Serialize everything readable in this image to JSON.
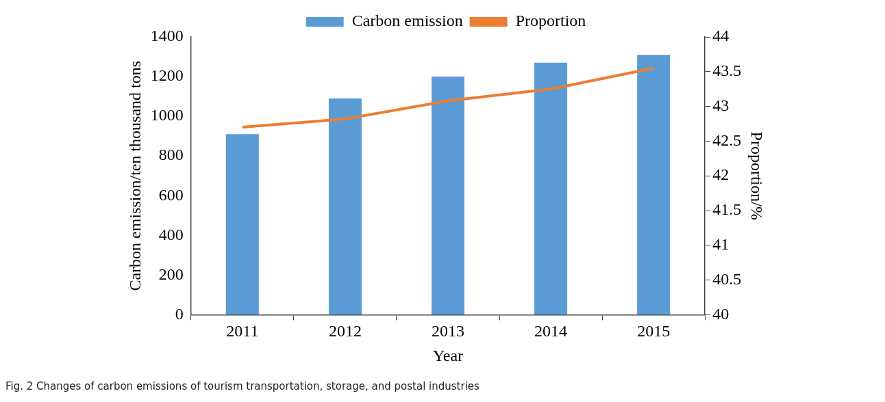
{
  "chart_data": {
    "type": "bar",
    "xlabel": "Year",
    "ylabel": "Carbon emission/ten thousand tons",
    "y2label": "Proportion/%",
    "categories": [
      "2011",
      "2012",
      "2013",
      "2014",
      "2015"
    ],
    "series": [
      {
        "name": "Carbon emission",
        "color": "#5b9bd5",
        "values": [
          910,
          1090,
          1200,
          1270,
          1310
        ]
      },
      {
        "name": "Proportion",
        "type": "line",
        "axis": "y2",
        "color": "#ed7d31",
        "marker": "none",
        "values": [
          42.7,
          42.82,
          43.08,
          43.25,
          43.55
        ]
      }
    ],
    "ylim": [
      0,
      1400
    ],
    "yticks": [
      0,
      200,
      400,
      600,
      800,
      1000,
      1200,
      1400
    ],
    "y2lim": [
      40,
      44
    ],
    "y2ticks": [
      40,
      40.5,
      41,
      41.5,
      42,
      42.5,
      43,
      43.5,
      44
    ],
    "grid": false,
    "legend": "top",
    "annotations": [
      "Fig. 2 Changes of carbon emissions of tourism transportation, storage, and postal industries"
    ]
  }
}
